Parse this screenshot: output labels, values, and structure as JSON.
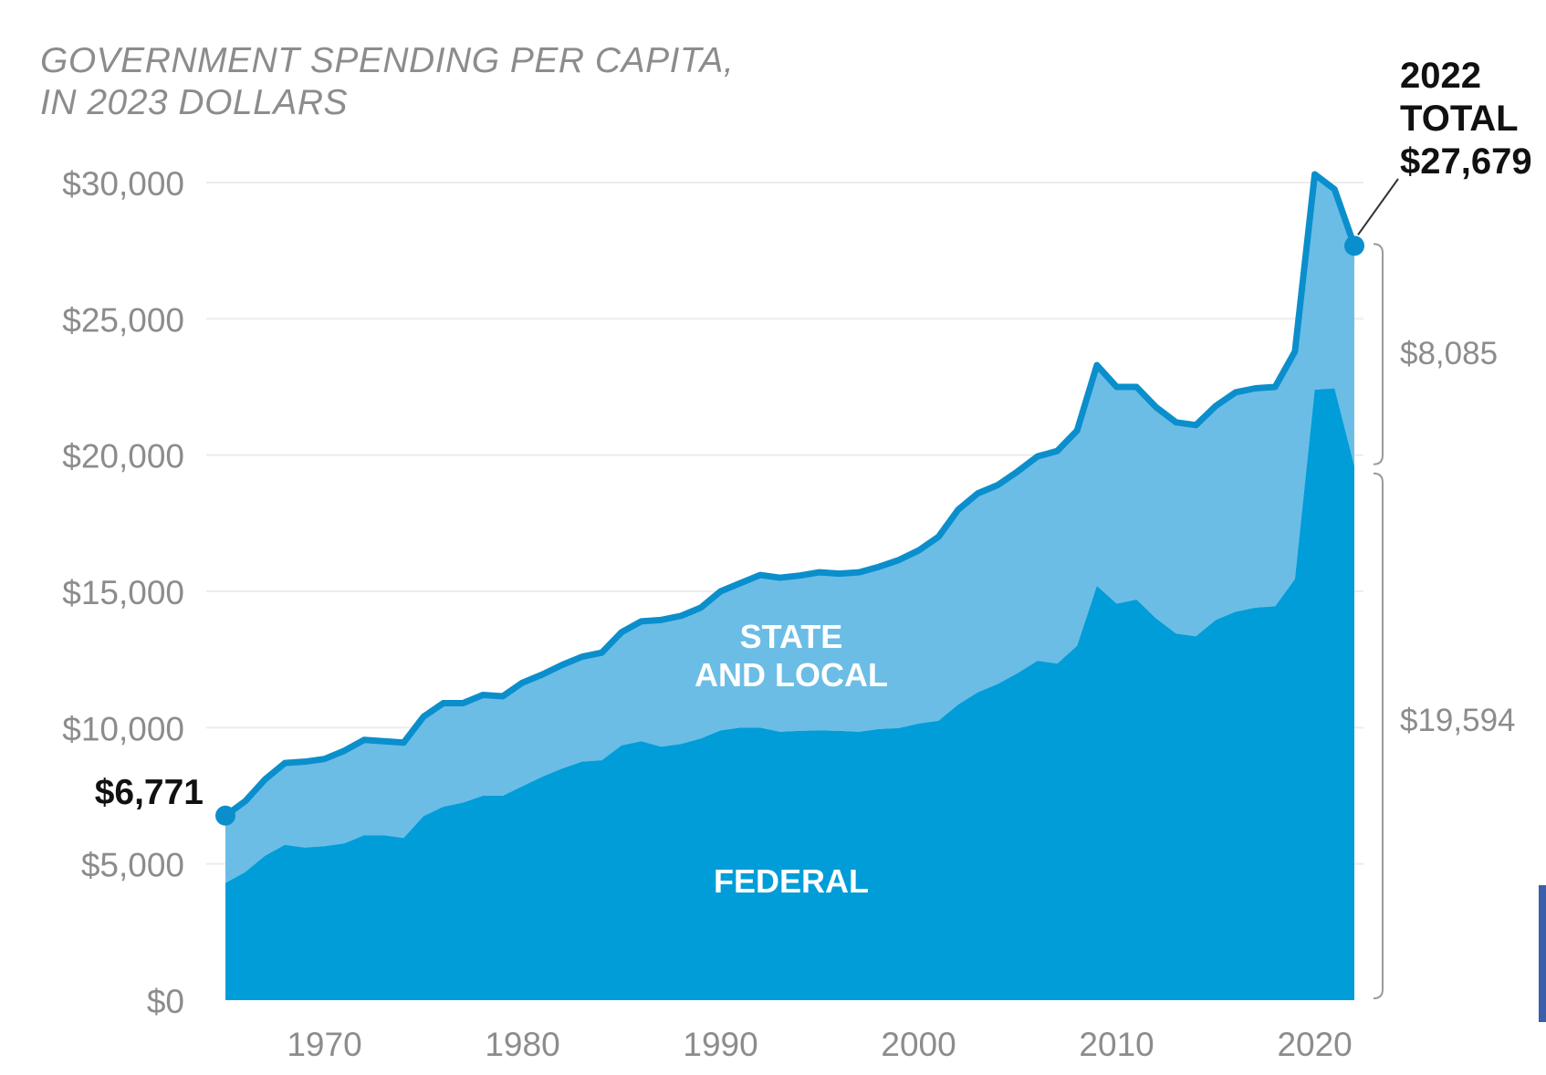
{
  "chart_data": {
    "type": "area",
    "title_lines": [
      "GOVERNMENT SPENDING PER CAPITA,",
      "IN 2023 DOLLARS"
    ],
    "xlabel": "",
    "ylabel": "",
    "xlim": [
      1965,
      2022
    ],
    "ylim": [
      0,
      30000
    ],
    "y_ticks": [
      0,
      5000,
      10000,
      15000,
      20000,
      25000,
      30000
    ],
    "y_tick_labels": [
      "$0",
      "$5,000",
      "$10,000",
      "$15,000",
      "$20,000",
      "$25,000",
      "$30,000"
    ],
    "x_ticks": [
      1970,
      1980,
      1990,
      2000,
      2010,
      2020
    ],
    "x_tick_labels": [
      "1970",
      "1980",
      "1990",
      "2000",
      "2010",
      "2020"
    ],
    "grid": true,
    "stacked": true,
    "x": [
      1965,
      1966,
      1967,
      1968,
      1969,
      1970,
      1971,
      1972,
      1973,
      1974,
      1975,
      1976,
      1977,
      1978,
      1979,
      1980,
      1981,
      1982,
      1983,
      1984,
      1985,
      1986,
      1987,
      1988,
      1989,
      1990,
      1991,
      1992,
      1993,
      1994,
      1995,
      1996,
      1997,
      1998,
      1999,
      2000,
      2001,
      2002,
      2003,
      2004,
      2005,
      2006,
      2007,
      2008,
      2009,
      2010,
      2011,
      2012,
      2013,
      2014,
      2015,
      2016,
      2017,
      2018,
      2019,
      2020,
      2021,
      2022
    ],
    "series": [
      {
        "name": "FEDERAL",
        "color": "#009dd9",
        "values": [
          4300,
          4700,
          5300,
          5700,
          5600,
          5650,
          5750,
          6050,
          6050,
          5950,
          6750,
          7100,
          7250,
          7500,
          7500,
          7850,
          8200,
          8500,
          8750,
          8800,
          9350,
          9500,
          9300,
          9400,
          9600,
          9900,
          10000,
          10000,
          9850,
          9880,
          9900,
          9880,
          9850,
          9950,
          9980,
          10150,
          10250,
          10850,
          11300,
          11600,
          12000,
          12450,
          12350,
          13000,
          15200,
          14550,
          14700,
          14000,
          13450,
          13350,
          13950,
          14250,
          14400,
          14450,
          15450,
          22400,
          22450,
          19594
        ]
      },
      {
        "name": "STATE AND LOCAL",
        "color": "#6bbde6",
        "values": [
          2471,
          2600,
          2800,
          3000,
          3150,
          3200,
          3400,
          3500,
          3450,
          3500,
          3650,
          3800,
          3650,
          3700,
          3650,
          3800,
          3750,
          3800,
          3850,
          3950,
          4150,
          4400,
          4650,
          4700,
          4800,
          5100,
          5300,
          5600,
          5650,
          5700,
          5800,
          5770,
          5850,
          5950,
          6170,
          6350,
          6750,
          7150,
          7300,
          7300,
          7400,
          7500,
          7800,
          7900,
          8100,
          7950,
          7800,
          7750,
          7750,
          7750,
          7850,
          8050,
          8050,
          8050,
          8350,
          7900,
          7300,
          8085
        ]
      }
    ],
    "total_line_color": "#0a8fcc",
    "area_labels": [
      {
        "text_lines": [
          "STATE",
          "AND LOCAL"
        ],
        "series": "STATE AND LOCAL"
      },
      {
        "text_lines": [
          "FEDERAL"
        ],
        "series": "FEDERAL"
      }
    ],
    "annotations": {
      "start_total": {
        "year": 1965,
        "value": 6771,
        "label": "$6,771"
      },
      "end_total": {
        "year": 2022,
        "value": 27679,
        "label_lines": [
          "2022",
          "TOTAL",
          "$27,679"
        ]
      },
      "state_local_2022": {
        "value": 8085,
        "label": "$8,085"
      },
      "federal_2022": {
        "value": 19594,
        "label": "$19,594"
      }
    }
  }
}
